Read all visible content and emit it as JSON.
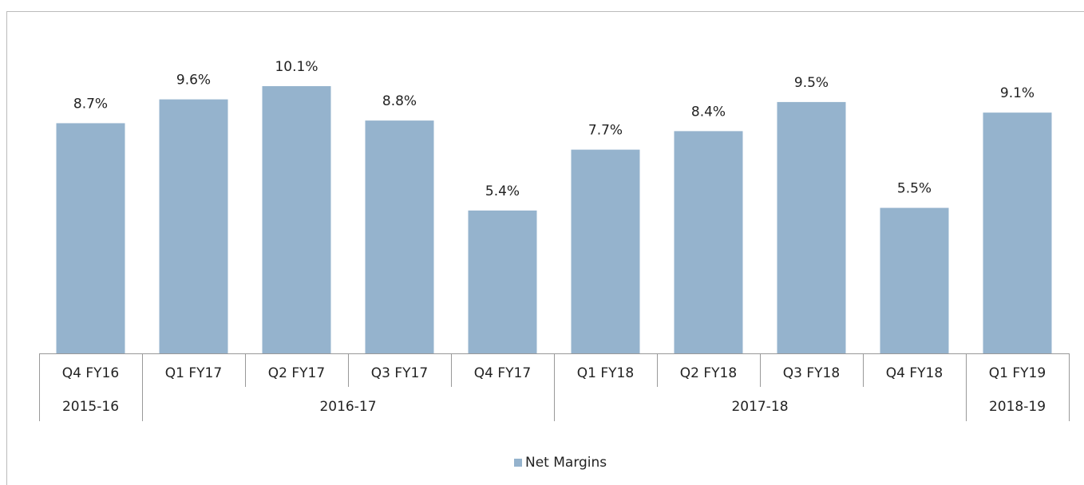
{
  "chart_data": {
    "type": "bar",
    "categories": [
      "Q4 FY16",
      "Q1 FY17",
      "Q2 FY17",
      "Q3 FY17",
      "Q4 FY17",
      "Q1 FY18",
      "Q2 FY18",
      "Q3 FY18",
      "Q4 FY18",
      "Q1 FY19"
    ],
    "values": [
      8.7,
      9.6,
      10.1,
      8.8,
      5.4,
      7.7,
      8.4,
      9.5,
      5.5,
      9.1
    ],
    "value_labels": [
      "8.7%",
      "9.6%",
      "10.1%",
      "8.8%",
      "5.4%",
      "7.7%",
      "8.4%",
      "9.5%",
      "5.5%",
      "9.1%"
    ],
    "groups": [
      "2015-16",
      "2016-17",
      "2017-18",
      "2018-19"
    ],
    "group_spans": [
      1,
      4,
      4,
      1
    ],
    "series": [
      {
        "name": "Net Margins",
        "color": "#95b3cd"
      }
    ],
    "legend": "bottom"
  }
}
